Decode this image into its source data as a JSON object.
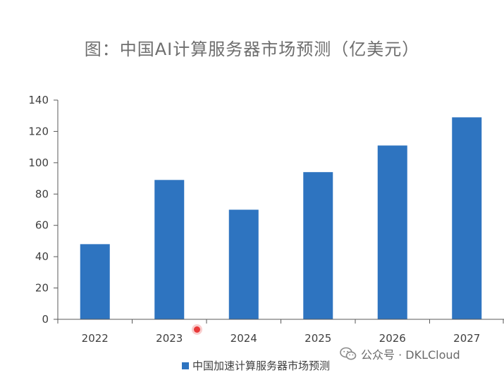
{
  "title": "图：中国AI计算服务器市场预测（亿美元）",
  "watermark": {
    "icon": "wechat-icon",
    "text": "公众号 · DKLCloud"
  },
  "colors": {
    "bar": "#2e74c0",
    "axis": "#595959",
    "grid": "#d9d9d9"
  },
  "chart_data": {
    "type": "bar",
    "title": "",
    "xlabel": "",
    "ylabel": "",
    "categories": [
      "2022",
      "2023",
      "2024",
      "2025",
      "2026",
      "2027"
    ],
    "series": [
      {
        "name": "中国加速计算服务器市场预测",
        "values": [
          48,
          89,
          70,
          94,
          111,
          129
        ]
      }
    ],
    "ylim": [
      0,
      140
    ],
    "yticks": [
      0,
      20,
      40,
      60,
      80,
      100,
      120,
      140
    ],
    "grid": false,
    "legend": "bottom"
  }
}
